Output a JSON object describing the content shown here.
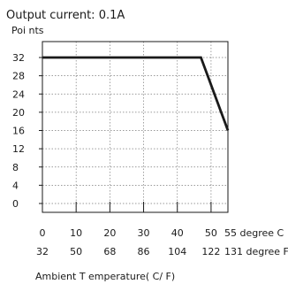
{
  "chart_data": {
    "type": "line",
    "title": "Output current: 0.1A",
    "ylabel": "Poi nts",
    "xlabel": "Ambient T emperature(   C/  F)",
    "x_ticks_c": [
      "0",
      "10",
      "20",
      "30",
      "40",
      "50",
      "55 degree C"
    ],
    "x_ticks_f": [
      "32",
      "50",
      "68",
      "86",
      "104",
      "122",
      "131 degree F"
    ],
    "y_ticks": [
      "32",
      "28",
      "24",
      "20",
      "16",
      "12",
      "8",
      "4",
      "0"
    ],
    "xlim": [
      0,
      55
    ],
    "ylim": [
      0,
      32
    ],
    "grid": true,
    "series": [
      {
        "x": [
          0,
          47,
          55
        ],
        "y": [
          32,
          32,
          16
        ]
      }
    ]
  }
}
